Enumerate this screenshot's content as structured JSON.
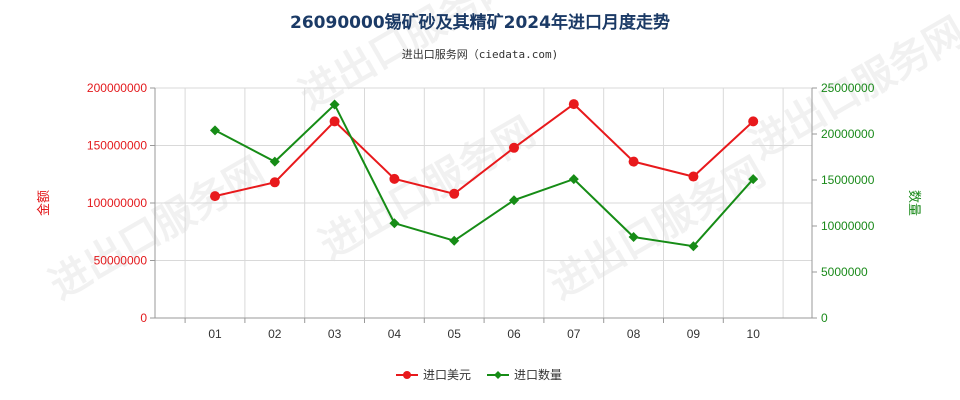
{
  "title": "26090000锡矿砂及其精矿2024年进口月度走势",
  "subtitle": "进出口服务网（ciedata.com)",
  "watermark": "进出口服务网",
  "colors": {
    "amount": "#e8191c",
    "quantity": "#168c16",
    "grid": "#d9d9d9",
    "axis": "#999999"
  },
  "chart_data": {
    "type": "line",
    "categories": [
      "01",
      "02",
      "03",
      "04",
      "05",
      "06",
      "07",
      "08",
      "09",
      "10"
    ],
    "series": [
      {
        "name": "进口美元",
        "axis": "left",
        "marker": "circle",
        "values": [
          106000000,
          118000000,
          171000000,
          121000000,
          108000000,
          148000000,
          186000000,
          136000000,
          123000000,
          171000000
        ]
      },
      {
        "name": "进口数量",
        "axis": "right",
        "marker": "diamond",
        "values": [
          20400000,
          17000000,
          23200000,
          10300000,
          8400000,
          12800000,
          15100000,
          8800000,
          7800000,
          15100000
        ]
      }
    ],
    "y_left": {
      "label": "金额",
      "range": [
        0,
        200000000
      ],
      "ticks": [
        "0",
        "50000000",
        "100000000",
        "150000000",
        "200000000"
      ]
    },
    "y_right": {
      "label": "数量",
      "range": [
        0,
        25000000
      ],
      "ticks": [
        "0",
        "5000000",
        "10000000",
        "15000000",
        "20000000",
        "25000000"
      ]
    },
    "grid": true,
    "legend": "bottom-center"
  }
}
